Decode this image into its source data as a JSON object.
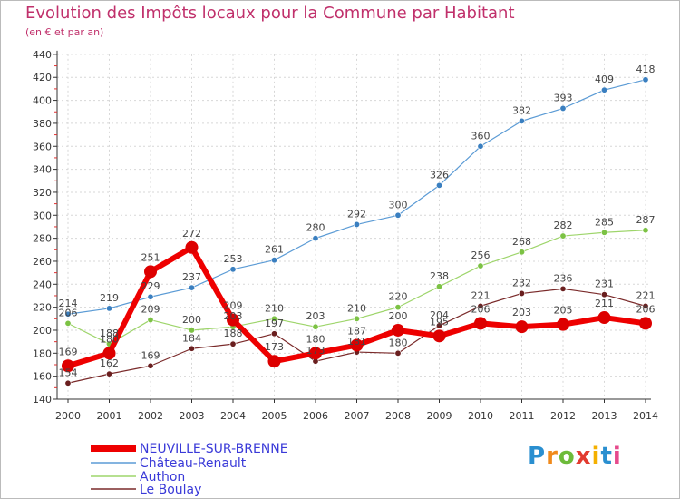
{
  "title": "Evolution des Impôts locaux pour la Commune par Habitant",
  "subtitle": "(en € et par an)",
  "logo": {
    "text": "Proxiti"
  },
  "chart_data": {
    "type": "line",
    "categories": [
      "2000",
      "2001",
      "2002",
      "2003",
      "2004",
      "2005",
      "2006",
      "2007",
      "2008",
      "2009",
      "2010",
      "2011",
      "2012",
      "2013",
      "2014"
    ],
    "ylim": [
      140,
      440
    ],
    "yticks": [
      140,
      160,
      180,
      200,
      220,
      240,
      260,
      280,
      300,
      320,
      340,
      360,
      380,
      400,
      420,
      440
    ],
    "grid": true,
    "legend_position": "bottom-left",
    "series": [
      {
        "name": "NEUVILLE-SUR-BRENNE",
        "color": "#ee0000",
        "markerColor": "#dd0000",
        "width": 6,
        "markerR": 7,
        "values": [
          169,
          180,
          251,
          272,
          209,
          173,
          180,
          187,
          200,
          195,
          206,
          203,
          205,
          211,
          206
        ]
      },
      {
        "name": "Château-Renault",
        "color": "#5b9bd5",
        "markerColor": "#3a7fc0",
        "width": 1.2,
        "markerR": 3.2,
        "values": [
          214,
          219,
          229,
          237,
          253,
          261,
          280,
          292,
          300,
          326,
          360,
          382,
          393,
          409,
          418
        ]
      },
      {
        "name": "Authon",
        "color": "#9ed56b",
        "markerColor": "#7cc244",
        "width": 1.2,
        "markerR": 3.2,
        "values": [
          206,
          188,
          209,
          200,
          203,
          210,
          203,
          210,
          220,
          238,
          256,
          268,
          282,
          285,
          287
        ]
      },
      {
        "name": "Le Boulay",
        "color": "#7a2a2a",
        "markerColor": "#6a1f1f",
        "width": 1.2,
        "markerR": 3.2,
        "values": [
          154,
          162,
          169,
          184,
          188,
          197,
          173,
          181,
          180,
          204,
          221,
          232,
          236,
          231,
          221
        ]
      }
    ]
  }
}
